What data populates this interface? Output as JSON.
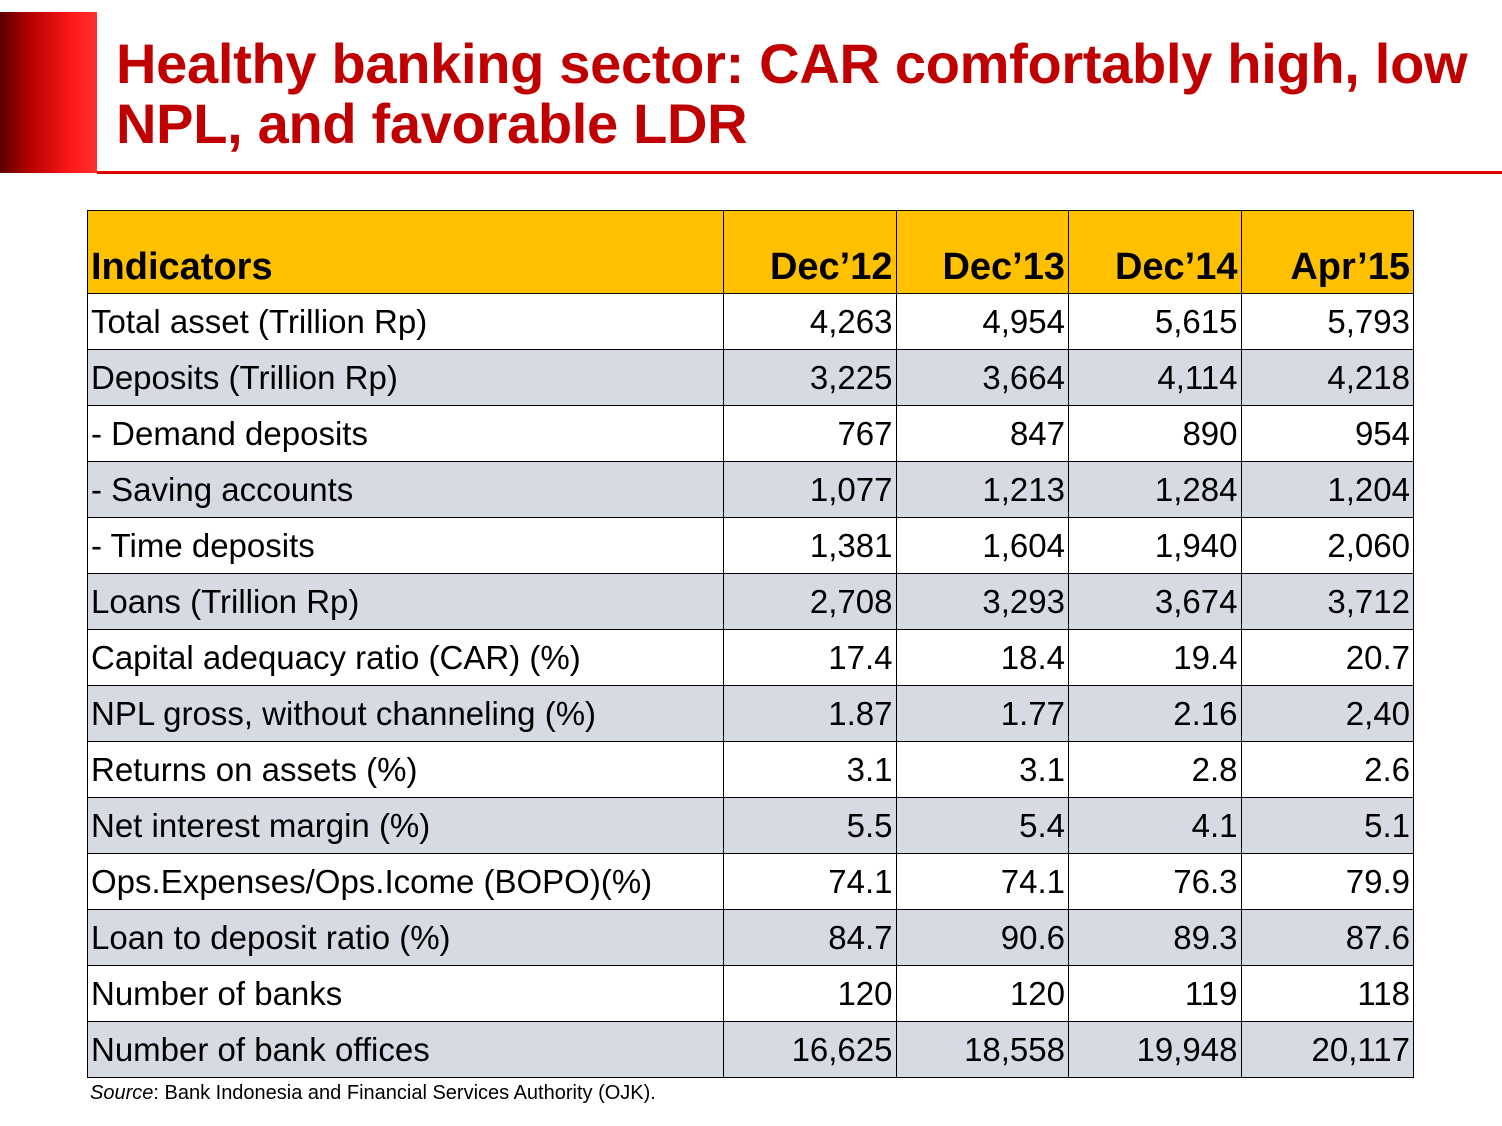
{
  "slide": {
    "title": "Healthy banking sector: CAR comfortably high, low NPL, and favorable LDR",
    "accent_color": "#c00000"
  },
  "table": {
    "header": {
      "indicator": "Indicators",
      "columns": [
        "Dec’12",
        "Dec’13",
        "Dec’14",
        "Apr’15"
      ]
    },
    "rows": [
      {
        "label": "Total asset (Trillion Rp)",
        "values": [
          "4,263",
          "4,954",
          "5,615",
          "5,793"
        ]
      },
      {
        "label": "Deposits (Trillion Rp)",
        "values": [
          "3,225",
          "3,664",
          "4,114",
          "4,218"
        ]
      },
      {
        "label": "- Demand deposits",
        "values": [
          "767",
          "847",
          "890",
          "954"
        ]
      },
      {
        "label": "- Saving accounts",
        "values": [
          "1,077",
          "1,213",
          "1,284",
          "1,204"
        ]
      },
      {
        "label": "- Time deposits",
        "values": [
          "1,381",
          "1,604",
          "1,940",
          "2,060"
        ]
      },
      {
        "label": "Loans (Trillion Rp)",
        "values": [
          "2,708",
          "3,293",
          "3,674",
          "3,712"
        ]
      },
      {
        "label": "Capital adequacy ratio (CAR) (%)",
        "values": [
          "17.4",
          "18.4",
          "19.4",
          "20.7"
        ]
      },
      {
        "label": "NPL gross, without channeling (%)",
        "values": [
          "1.87",
          "1.77",
          "2.16",
          "2,40"
        ]
      },
      {
        "label": "Returns on assets (%)",
        "values": [
          "3.1",
          "3.1",
          "2.8",
          "2.6"
        ]
      },
      {
        "label": "Net interest margin (%)",
        "values": [
          "5.5",
          "5.4",
          "4.1",
          "5.1"
        ]
      },
      {
        "label": "Ops.Expenses/Ops.Icome (BOPO)(%)",
        "values": [
          "74.1",
          "74.1",
          "76.3",
          "79.9"
        ]
      },
      {
        "label": "Loan to deposit ratio (%)",
        "values": [
          "84.7",
          "90.6",
          "89.3",
          "87.6"
        ]
      },
      {
        "label": "Number of banks",
        "values": [
          "120",
          "120",
          "119",
          "118"
        ]
      },
      {
        "label": "Number of bank offices",
        "values": [
          "16,625",
          "18,558",
          "19,948",
          "20,117"
        ]
      }
    ]
  },
  "source": {
    "label": "Source",
    "text": ": Bank Indonesia and Financial Services Authority (OJK)."
  }
}
